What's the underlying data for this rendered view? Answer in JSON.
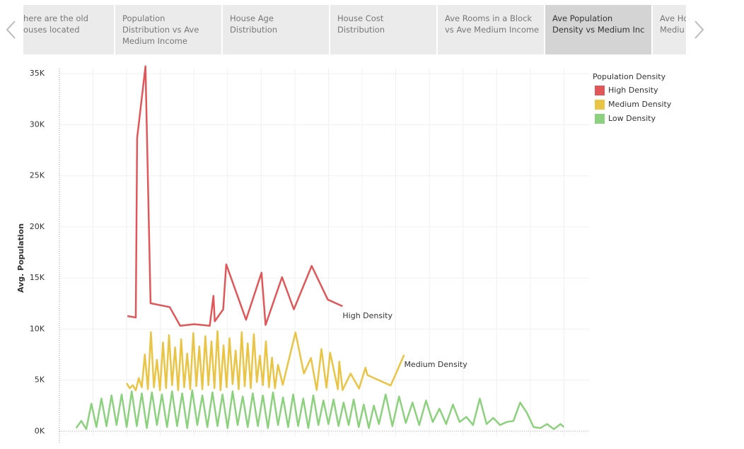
{
  "tabs": {
    "active": 5,
    "items": [
      {
        "lines": [
          "here are the old",
          "ouses located"
        ]
      },
      {
        "lines": [
          "Population",
          "Distribution vs Ave",
          "Medium Income"
        ]
      },
      {
        "lines": [
          "House Age",
          "Distribution"
        ]
      },
      {
        "lines": [
          "House Cost",
          "Distribution"
        ]
      },
      {
        "lines": [
          "Ave Rooms in a Block",
          "vs Ave Medium Income"
        ]
      },
      {
        "lines": [
          "Ave Population",
          "Density vs Medium Inc"
        ]
      },
      {
        "lines": [
          "Ave Ho",
          "Mediu"
        ]
      }
    ]
  },
  "chart_data": {
    "type": "line",
    "y_label": "Avg. Population",
    "legend_title": "Population Density",
    "legend_position": "right",
    "xlim": [
      0,
      15.75
    ],
    "xticks": [
      1,
      2,
      3,
      4,
      5,
      6,
      7,
      8,
      9,
      10,
      11,
      12,
      13,
      14,
      15
    ],
    "ylim": [
      -500,
      35500
    ],
    "yticks": [
      {
        "value": 0,
        "label": "0K"
      },
      {
        "value": 5000,
        "label": "5K"
      },
      {
        "value": 10000,
        "label": "10K"
      },
      {
        "value": 15000,
        "label": "15K"
      },
      {
        "value": 20000,
        "label": "20K"
      },
      {
        "value": 25000,
        "label": "25K"
      },
      {
        "value": 30000,
        "label": "30K"
      },
      {
        "value": 35000,
        "label": "35K"
      }
    ],
    "grid": true,
    "series": [
      {
        "name": "High Density",
        "color": "#e15759",
        "end_label": true,
        "x": [
          2.02,
          2.27,
          2.31,
          2.56,
          2.71,
          3.28,
          3.59,
          4.01,
          4.47,
          4.58,
          4.62,
          4.87,
          4.96,
          5.55,
          6.01,
          6.13,
          6.62,
          6.97,
          7.5,
          7.98,
          8.42
        ],
        "values": [
          11270,
          11130,
          28700,
          35720,
          12520,
          12150,
          10320,
          10470,
          10320,
          13250,
          10760,
          11930,
          16330,
          10910,
          15520,
          10400,
          15080,
          11930,
          16180,
          12880,
          12230
        ]
      },
      {
        "name": "Medium Density",
        "color": "#e9c445",
        "end_label": true,
        "x": [
          2.0,
          2.09,
          2.18,
          2.27,
          2.36,
          2.45,
          2.54,
          2.63,
          2.72,
          2.81,
          2.9,
          2.99,
          3.08,
          3.17,
          3.26,
          3.35,
          3.44,
          3.53,
          3.62,
          3.71,
          3.8,
          3.89,
          3.98,
          4.07,
          4.16,
          4.25,
          4.34,
          4.43,
          4.52,
          4.61,
          4.7,
          4.79,
          4.88,
          4.97,
          5.06,
          5.15,
          5.24,
          5.33,
          5.42,
          5.51,
          5.6,
          5.69,
          5.78,
          5.87,
          5.96,
          6.05,
          6.14,
          6.23,
          6.32,
          6.41,
          6.5,
          6.64,
          7.02,
          7.27,
          7.48,
          7.65,
          7.79,
          7.94,
          8.05,
          8.28,
          8.32,
          8.42,
          8.66,
          8.91,
          9.1,
          9.16,
          9.85,
          10.25
        ],
        "values": [
          4700,
          4200,
          4500,
          4000,
          5200,
          4300,
          7500,
          4100,
          9700,
          4300,
          7000,
          4000,
          8700,
          4200,
          9400,
          4500,
          8200,
          4000,
          9000,
          4300,
          7600,
          4100,
          9600,
          4400,
          8300,
          4100,
          9300,
          4500,
          8800,
          4200,
          9800,
          4000,
          8400,
          4300,
          9100,
          4600,
          7900,
          4100,
          9700,
          4400,
          8600,
          4200,
          9500,
          4800,
          7400,
          4500,
          8800,
          4300,
          7200,
          4200,
          6500,
          4540,
          9660,
          5640,
          7170,
          4030,
          8050,
          4250,
          7690,
          4100,
          6810,
          4030,
          5640,
          4170,
          6220,
          5490,
          4470,
          7470
        ]
      },
      {
        "name": "Low Density",
        "color": "#8cd17d",
        "end_label": false,
        "x": [
          0.5,
          0.65,
          0.8,
          0.95,
          1.1,
          1.25,
          1.4,
          1.55,
          1.7,
          1.85,
          2.0,
          2.15,
          2.3,
          2.45,
          2.6,
          2.75,
          2.9,
          3.05,
          3.2,
          3.35,
          3.5,
          3.65,
          3.8,
          3.95,
          4.1,
          4.25,
          4.4,
          4.55,
          4.7,
          4.85,
          5.0,
          5.15,
          5.3,
          5.45,
          5.6,
          5.75,
          5.9,
          6.05,
          6.2,
          6.35,
          6.5,
          6.65,
          6.8,
          6.95,
          7.1,
          7.25,
          7.4,
          7.55,
          7.7,
          7.85,
          8.0,
          8.15,
          8.3,
          8.45,
          8.6,
          8.75,
          8.9,
          9.05,
          9.2,
          9.35,
          9.5,
          9.7,
          9.9,
          10.1,
          10.3,
          10.5,
          10.7,
          10.9,
          11.1,
          11.3,
          11.5,
          11.7,
          11.9,
          12.1,
          12.3,
          12.5,
          12.7,
          12.9,
          13.1,
          13.3,
          13.5,
          13.7,
          13.9,
          14.1,
          14.3,
          14.5,
          14.7,
          14.9,
          15.0
        ],
        "values": [
          300,
          1000,
          200,
          2700,
          400,
          3200,
          500,
          3500,
          600,
          3600,
          400,
          3900,
          500,
          3700,
          300,
          3800,
          600,
          3600,
          400,
          3900,
          500,
          3700,
          300,
          4000,
          600,
          3500,
          400,
          3800,
          500,
          3600,
          300,
          3900,
          600,
          3400,
          400,
          3700,
          500,
          3500,
          300,
          3800,
          600,
          3300,
          400,
          3600,
          500,
          3200,
          300,
          3500,
          600,
          3000,
          700,
          3100,
          500,
          2800,
          600,
          3100,
          400,
          2600,
          300,
          2500,
          700,
          3600,
          500,
          3400,
          800,
          2800,
          600,
          3000,
          900,
          2200,
          700,
          2600,
          900,
          1400,
          600,
          3200,
          700,
          1300,
          600,
          900,
          1000,
          2800,
          1800,
          400,
          300,
          700,
          200,
          700,
          400
        ]
      }
    ]
  }
}
